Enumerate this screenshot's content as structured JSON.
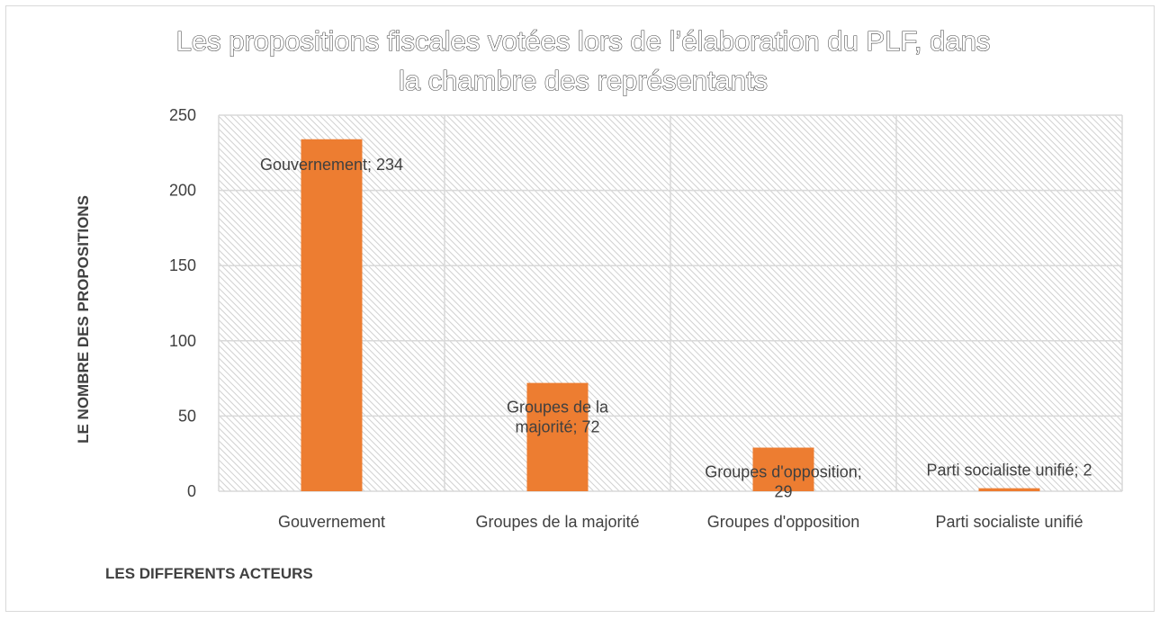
{
  "chart_data": {
    "type": "bar",
    "title_lines": [
      "Les propositions fiscales votées lors de l’élaboration du PLF, dans",
      "la chambre des représentants"
    ],
    "xlabel": "LES DIFFERENTS ACTEURS",
    "ylabel": "LE NOMBRE DES PROPOSITIONS",
    "categories": [
      "Gouvernement",
      "Groupes de la majorité",
      "Groupes d'opposition",
      "Parti socialiste unifié"
    ],
    "values": [
      234,
      72,
      29,
      2
    ],
    "data_labels": [
      [
        "Gouvernement; 234"
      ],
      [
        "Groupes de la",
        "majorité; 72"
      ],
      [
        "Groupes d'opposition;",
        "29"
      ],
      [
        "Parti socialiste unifié; 2"
      ]
    ],
    "yticks": [
      0,
      50,
      100,
      150,
      200,
      250
    ],
    "ylim": [
      0,
      250
    ],
    "grid": true,
    "legend": "none",
    "colors": {
      "bar": "#ed7d31",
      "grid": "#d9d9d9",
      "hatch": "#d0d0d0",
      "text": "#404040"
    }
  }
}
